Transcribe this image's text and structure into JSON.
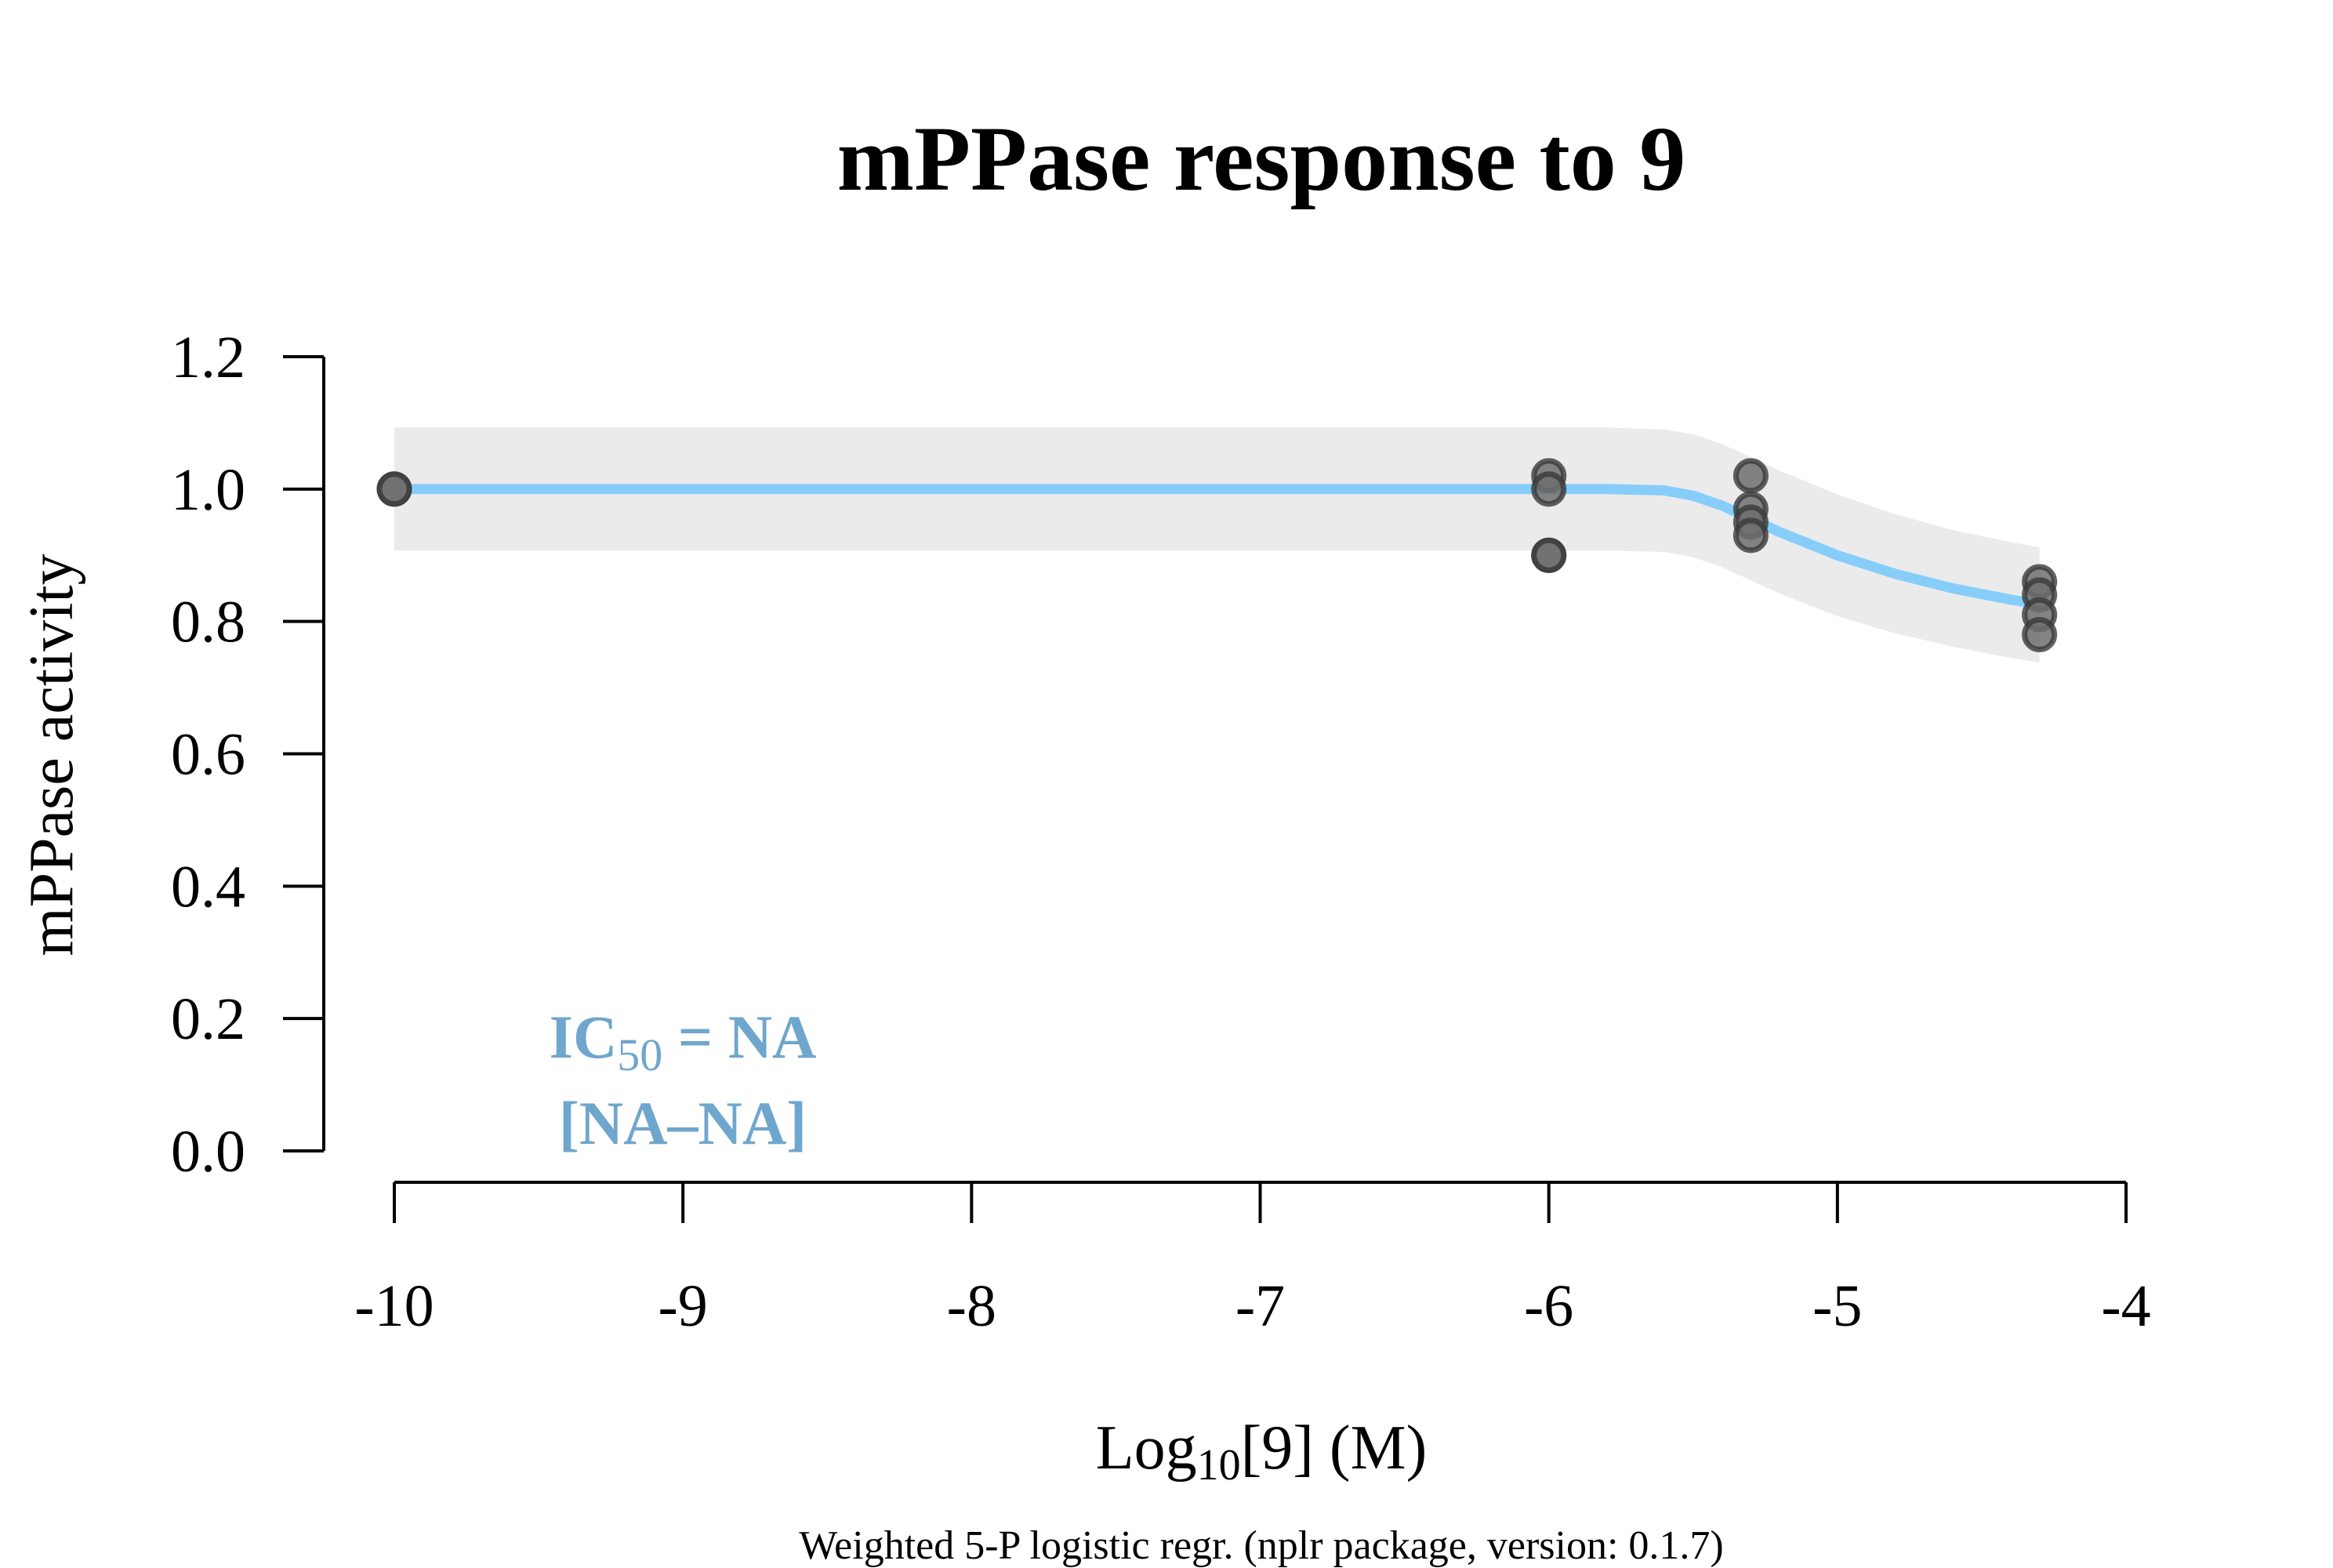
{
  "chart_data": {
    "type": "scatter",
    "title": "mPPase response to 9",
    "ylabel": "mPPase activity",
    "xlabel": {
      "prefix": "Log",
      "subscript": "10",
      "suffix": "[9] (M)"
    },
    "footnote": "Weighted 5-P logistic regr. (nplr package, version: 0.1.7)",
    "annotation": {
      "line1_prefix": "IC",
      "line1_subscript": "50",
      "line1_suffix": " = NA",
      "line2": "[NA–NA]",
      "color": "#6fa6cd"
    },
    "xlim": [
      -10,
      -4
    ],
    "ylim": [
      0,
      1.2
    ],
    "x_ticks": [
      -10,
      -9,
      -8,
      -7,
      -6,
      -5,
      -4
    ],
    "x_tick_labels": [
      "-10",
      "-9",
      "-8",
      "-7",
      "-6",
      "-5",
      "-4"
    ],
    "y_ticks": [
      0,
      0.2,
      0.4,
      0.6,
      0.8,
      1.0,
      1.2
    ],
    "y_tick_labels": [
      "0.0",
      "0.2",
      "0.4",
      "0.6",
      "0.8",
      "1.0",
      "1.2"
    ],
    "points": [
      {
        "x": -10,
        "y": 1.0
      },
      {
        "x": -10,
        "y": 1.0
      },
      {
        "x": -6,
        "y": 1.02
      },
      {
        "x": -6,
        "y": 1.0
      },
      {
        "x": -6,
        "y": 0.9
      },
      {
        "x": -6,
        "y": 0.9
      },
      {
        "x": -5.3,
        "y": 1.02
      },
      {
        "x": -5.3,
        "y": 0.97
      },
      {
        "x": -5.3,
        "y": 0.95
      },
      {
        "x": -5.3,
        "y": 0.93
      },
      {
        "x": -4.3,
        "y": 0.86
      },
      {
        "x": -4.3,
        "y": 0.84
      },
      {
        "x": -4.3,
        "y": 0.81
      },
      {
        "x": -4.3,
        "y": 0.78
      }
    ],
    "fit_curve": {
      "x": [
        -10,
        -9,
        -8,
        -7,
        -6.2,
        -6,
        -5.8,
        -5.6,
        -5.5,
        -5.4,
        -5.3,
        -5.2,
        -5.0,
        -4.8,
        -4.6,
        -4.4,
        -4.3
      ],
      "y": [
        1.0,
        1.0,
        1.0,
        1.0,
        1.0,
        1.0,
        1.0,
        0.998,
        0.99,
        0.975,
        0.955,
        0.935,
        0.9,
        0.872,
        0.85,
        0.833,
        0.826
      ]
    },
    "confidence_band": {
      "x": [
        -10,
        -9,
        -8,
        -7,
        -6.2,
        -6,
        -5.8,
        -5.6,
        -5.5,
        -5.4,
        -5.3,
        -5.2,
        -5.0,
        -4.8,
        -4.6,
        -4.4,
        -4.3
      ],
      "upper": [
        1.093,
        1.093,
        1.093,
        1.093,
        1.093,
        1.093,
        1.093,
        1.09,
        1.083,
        1.068,
        1.048,
        1.028,
        0.992,
        0.962,
        0.938,
        0.92,
        0.912
      ],
      "lower": [
        0.907,
        0.907,
        0.907,
        0.907,
        0.907,
        0.907,
        0.907,
        0.905,
        0.897,
        0.882,
        0.862,
        0.842,
        0.808,
        0.782,
        0.762,
        0.745,
        0.738
      ]
    },
    "grid": false,
    "colors": {
      "curve": "#87cdfa",
      "band": "#ebebeb",
      "point_fill": "#6e6e6e",
      "point_stroke": "#3a3a3a"
    }
  }
}
